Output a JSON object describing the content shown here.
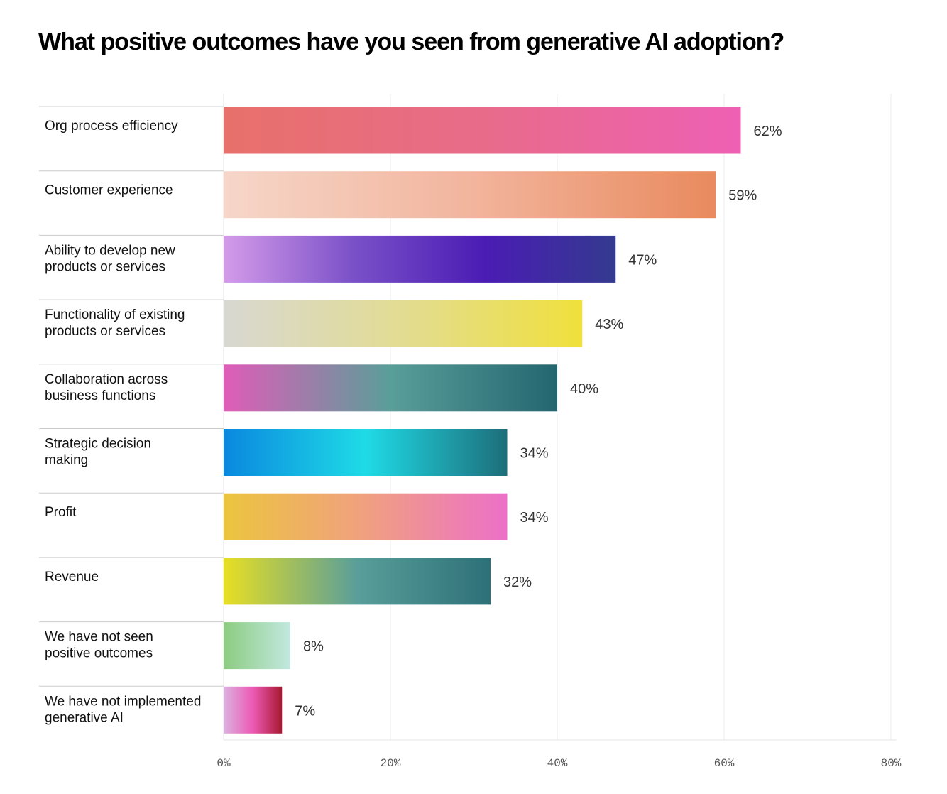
{
  "chart_data": {
    "type": "bar",
    "orientation": "horizontal",
    "title": "What positive outcomes have you seen from generative AI adoption?",
    "xlabel": "",
    "ylabel": "",
    "xlim": [
      0,
      80
    ],
    "xticks": [
      0,
      20,
      40,
      60,
      80
    ],
    "tick_labels": [
      "0%",
      "20%",
      "40%",
      "60%",
      "80%"
    ],
    "grid": true,
    "categories": [
      "Org process efficiency",
      "Customer experience",
      "Ability to develop new products or services",
      "Functionality of existing products or services",
      "Collaboration across business functions",
      "Strategic decision making",
      "Profit",
      "Revenue",
      "We have not seen positive outcomes",
      "We have not implemented generative AI"
    ],
    "category_lines": [
      [
        "Org process efficiency"
      ],
      [
        "Customer experience"
      ],
      [
        "Ability to develop new",
        "products or services"
      ],
      [
        "Functionality of existing",
        "products or services"
      ],
      [
        "Collaboration across",
        "business functions"
      ],
      [
        "Strategic decision",
        "making"
      ],
      [
        "Profit"
      ],
      [
        "Revenue"
      ],
      [
        "We have not seen",
        "positive outcomes"
      ],
      [
        "We have not implemented",
        "generative AI"
      ]
    ],
    "values": [
      62,
      59,
      47,
      43,
      40,
      34,
      34,
      32,
      8,
      7
    ],
    "value_labels": [
      "62%",
      "59%",
      "47%",
      "43%",
      "40%",
      "34%",
      "34%",
      "32%",
      "8%",
      "7%"
    ],
    "bar_gradients": [
      [
        "#e8706a",
        "#e86b8a",
        "#ee60b4"
      ],
      [
        "#f6d6c9",
        "#f2b59d",
        "#e98a5f"
      ],
      [
        "#d49be9",
        "#7a50c8",
        "#4a1cb4",
        "#343a8f"
      ],
      [
        "#d8d8d2",
        "#e2dc92",
        "#f0e03c"
      ],
      [
        "#e05cb8",
        "#5a9e9a",
        "#236670"
      ],
      [
        "#0a88df",
        "#1fdbe6",
        "#1d6e7a"
      ],
      [
        "#ecc53e",
        "#f0a080",
        "#ec70c8"
      ],
      [
        "#e8df22",
        "#5a9e9a",
        "#2e7078"
      ],
      [
        "#8ccc80",
        "#c2e8e0"
      ],
      [
        "#dbb2e0",
        "#ec5ab4",
        "#a81830"
      ]
    ]
  }
}
